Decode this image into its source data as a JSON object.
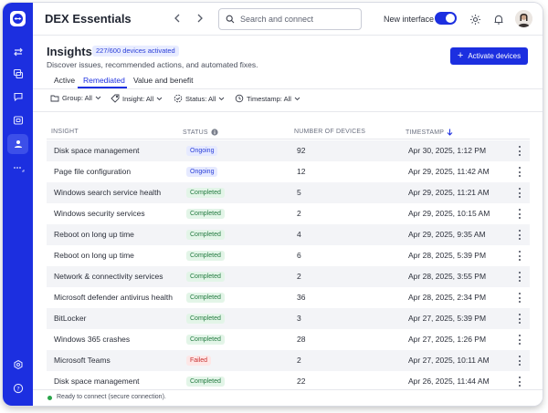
{
  "app": {
    "title": "DEX Essentials"
  },
  "colors": {
    "accent": "#1c2fe0",
    "ongoing": "#2b3fd8",
    "completed": "#237a40",
    "failed": "#c92f2f"
  },
  "topbar": {
    "search_placeholder": "Search and connect",
    "new_interface_label": "New interface",
    "new_interface_on": true
  },
  "rail": {
    "icons": [
      "teamviewer-logo-icon",
      "transfer-icon",
      "devices-icon",
      "chat-icon",
      "sessions-icon",
      "dex-icon",
      "more-icon",
      "settings-icon",
      "help-icon"
    ]
  },
  "header": {
    "title": "Insights",
    "devices_badge": "227/600 devices activated",
    "subtitle": "Discover issues, recommended actions, and automated fixes.",
    "activate_button": "Activate devices"
  },
  "tabs": [
    {
      "label": "Active",
      "active": false
    },
    {
      "label": "Remediated",
      "active": true
    },
    {
      "label": "Value and benefit",
      "active": false
    }
  ],
  "filters": [
    {
      "label": "Group: All",
      "icon": "folder-icon"
    },
    {
      "label": "Insight: All",
      "icon": "tag-icon"
    },
    {
      "label": "Status: All",
      "icon": "status-icon"
    },
    {
      "label": "Timestamp: All",
      "icon": "clock-icon"
    }
  ],
  "table": {
    "columns": [
      "INSIGHT",
      "STATUS",
      "NUMBER OF DEVICES",
      "TIMESTAMP"
    ],
    "rows": [
      {
        "insight": "Disk space management",
        "status": "Ongoing",
        "devices": "92",
        "timestamp": "Apr 30, 2025, 1:12 PM"
      },
      {
        "insight": "Page file configuration",
        "status": "Ongoing",
        "devices": "12",
        "timestamp": "Apr 29, 2025, 11:42 AM"
      },
      {
        "insight": "Windows search service health",
        "status": "Completed",
        "devices": "5",
        "timestamp": "Apr 29, 2025, 11:21 AM"
      },
      {
        "insight": "Windows security services",
        "status": "Completed",
        "devices": "2",
        "timestamp": "Apr 29, 2025, 10:15 AM"
      },
      {
        "insight": "Reboot on long up time",
        "status": "Completed",
        "devices": "4",
        "timestamp": "Apr 29, 2025, 9:35 AM"
      },
      {
        "insight": "Reboot on long up time",
        "status": "Completed",
        "devices": "6",
        "timestamp": "Apr 28, 2025, 5:39 PM"
      },
      {
        "insight": "Network & connectivity services",
        "status": "Completed",
        "devices": "2",
        "timestamp": "Apr 28, 2025, 3:55 PM"
      },
      {
        "insight": "Microsoft defender antivirus health",
        "status": "Completed",
        "devices": "36",
        "timestamp": "Apr 28, 2025, 2:34 PM"
      },
      {
        "insight": "BitLocker",
        "status": "Completed",
        "devices": "3",
        "timestamp": "Apr 27, 2025, 5:39 PM"
      },
      {
        "insight": "Windows 365 crashes",
        "status": "Completed",
        "devices": "28",
        "timestamp": "Apr 27, 2025, 1:26 PM"
      },
      {
        "insight": "Microsoft Teams",
        "status": "Failed",
        "devices": "2",
        "timestamp": "Apr 27, 2025, 10:11 AM"
      },
      {
        "insight": "Disk space management",
        "status": "Completed",
        "devices": "22",
        "timestamp": "Apr 26, 2025, 11:44 AM"
      }
    ]
  },
  "statusbar": {
    "text": "Ready to connect (secure connection)."
  }
}
